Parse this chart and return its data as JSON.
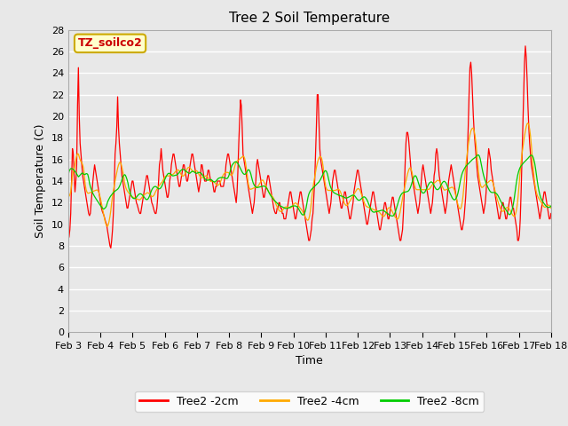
{
  "title": "Tree 2 Soil Temperature",
  "xlabel": "Time",
  "ylabel": "Soil Temperature (C)",
  "annotation": "TZ_soilco2",
  "annotation_bg": "#ffffcc",
  "annotation_border": "#ccaa00",
  "annotation_text_color": "#cc0000",
  "ylim": [
    0,
    28
  ],
  "yticks": [
    0,
    2,
    4,
    6,
    8,
    10,
    12,
    14,
    16,
    18,
    20,
    22,
    24,
    26,
    28
  ],
  "xtick_labels": [
    "Feb 3",
    "Feb 4",
    "Feb 5",
    "Feb 6",
    "Feb 7",
    "Feb 8",
    "Feb 9",
    "Feb 10",
    "Feb 11",
    "Feb 12",
    "Feb 13",
    "Feb 14",
    "Feb 15",
    "Feb 16",
    "Feb 17",
    "Feb 18"
  ],
  "line_colors": [
    "#ff0000",
    "#ffaa00",
    "#00cc00"
  ],
  "line_labels": [
    "Tree2 -2cm",
    "Tree2 -4cm",
    "Tree2 -8cm"
  ],
  "bg_color": "#e8e8e8",
  "plot_bg": "#e8e8e8",
  "grid_color": "#ffffff",
  "t2cm": [
    9.0,
    8.8,
    9.5,
    11.0,
    14.0,
    17.0,
    16.5,
    14.5,
    13.0,
    14.0,
    15.5,
    21.0,
    24.5,
    20.0,
    17.5,
    16.5,
    15.5,
    14.5,
    14.0,
    13.5,
    13.0,
    12.5,
    12.0,
    11.5,
    11.0,
    10.8,
    11.0,
    12.0,
    13.0,
    14.0,
    14.8,
    15.5,
    15.0,
    14.5,
    14.0,
    13.5,
    13.0,
    12.5,
    12.0,
    11.5,
    11.2,
    11.0,
    10.8,
    10.5,
    10.2,
    10.0,
    9.5,
    9.0,
    8.5,
    8.0,
    7.8,
    8.5,
    9.5,
    11.0,
    13.5,
    16.5,
    17.5,
    19.0,
    21.8,
    19.0,
    17.5,
    16.5,
    15.5,
    14.5,
    14.0,
    13.5,
    13.0,
    12.5,
    12.0,
    11.5,
    11.5,
    12.0,
    12.5,
    13.0,
    13.5,
    14.0,
    14.0,
    13.5,
    13.0,
    12.5,
    12.0,
    11.8,
    11.5,
    11.2,
    11.0,
    11.0,
    11.5,
    12.0,
    12.5,
    13.0,
    13.5,
    14.0,
    14.5,
    14.5,
    14.0,
    13.5,
    13.0,
    12.5,
    12.0,
    11.8,
    11.5,
    11.2,
    11.0,
    11.0,
    11.5,
    12.5,
    14.0,
    15.5,
    16.0,
    17.0,
    16.0,
    15.0,
    14.5,
    14.0,
    13.5,
    13.0,
    12.5,
    12.5,
    13.0,
    14.0,
    14.5,
    15.5,
    16.0,
    16.5,
    16.5,
    16.0,
    15.5,
    15.0,
    14.5,
    14.0,
    13.5,
    13.5,
    14.0,
    14.5,
    15.0,
    15.5,
    15.5,
    15.0,
    14.5,
    14.0,
    14.0,
    14.5,
    15.0,
    15.5,
    16.0,
    16.5,
    16.5,
    16.0,
    15.5,
    15.0,
    14.5,
    14.0,
    13.5,
    13.0,
    13.5,
    14.0,
    15.5,
    15.5,
    15.0,
    14.5,
    14.0,
    14.0,
    14.0,
    14.5,
    15.0,
    15.0,
    14.5,
    14.0,
    14.0,
    14.0,
    13.5,
    13.0,
    13.0,
    13.5,
    13.5,
    14.0,
    14.0,
    14.0,
    14.0,
    13.5,
    13.5,
    13.5,
    13.5,
    14.0,
    14.5,
    15.5,
    16.0,
    16.5,
    16.5,
    16.0,
    15.5,
    15.0,
    14.5,
    14.0,
    13.5,
    13.0,
    12.5,
    12.0,
    13.0,
    15.0,
    17.5,
    19.5,
    21.5,
    21.0,
    19.0,
    16.5,
    16.0,
    15.5,
    15.0,
    14.5,
    14.0,
    13.5,
    13.0,
    12.5,
    12.0,
    11.5,
    11.0,
    11.5,
    12.0,
    13.0,
    14.0,
    15.5,
    16.0,
    15.5,
    15.0,
    14.5,
    14.0,
    13.5,
    13.0,
    12.5,
    12.5,
    13.0,
    13.5,
    14.0,
    14.5,
    14.5,
    14.0,
    13.5,
    13.0,
    12.5,
    12.0,
    11.5,
    11.2,
    11.0,
    11.0,
    11.5,
    11.5,
    12.0,
    12.0,
    11.5,
    11.5,
    11.0,
    11.0,
    10.5,
    10.5,
    10.5,
    11.0,
    11.5,
    12.0,
    12.5,
    13.0,
    13.0,
    12.5,
    12.0,
    11.5,
    11.0,
    10.5,
    10.5,
    11.0,
    11.5,
    12.0,
    12.5,
    13.0,
    13.0,
    12.5,
    12.0,
    11.5,
    11.0,
    10.5,
    10.0,
    9.5,
    9.0,
    8.5,
    8.5,
    9.0,
    9.5,
    10.5,
    11.0,
    12.5,
    14.0,
    16.5,
    19.0,
    22.0,
    22.0,
    19.5,
    17.0,
    16.0,
    15.5,
    15.0,
    14.5,
    14.0,
    13.5,
    13.0,
    12.5,
    12.0,
    11.5,
    11.0,
    11.5,
    12.0,
    13.0,
    14.0,
    14.5,
    15.0,
    15.0,
    14.5,
    14.0,
    13.5,
    13.0,
    12.5,
    12.0,
    11.5,
    11.5,
    12.0,
    12.5,
    13.0,
    13.0,
    12.5,
    12.0,
    11.5,
    11.0,
    10.5,
    10.5,
    11.0,
    11.5,
    12.0,
    13.0,
    13.5,
    14.0,
    14.5,
    15.0,
    15.0,
    14.5,
    14.0,
    13.5,
    13.0,
    12.5,
    12.0,
    11.5,
    11.0,
    10.5,
    10.0,
    10.0,
    10.5,
    11.0,
    11.5,
    12.0,
    12.5,
    13.0,
    13.0,
    12.5,
    12.0,
    11.5,
    11.0,
    10.5,
    10.0,
    9.5,
    9.5,
    10.0,
    10.5,
    11.0,
    11.5,
    12.0,
    12.0,
    11.5,
    11.0,
    10.5,
    10.5,
    11.0,
    11.5,
    12.0,
    12.5,
    12.5,
    12.0,
    11.5,
    11.0,
    10.5,
    10.0,
    9.5,
    9.0,
    8.5,
    8.5,
    9.0,
    9.5,
    11.0,
    13.0,
    15.5,
    17.5,
    18.5,
    18.5,
    18.0,
    17.0,
    16.0,
    15.0,
    14.5,
    14.0,
    13.5,
    13.0,
    12.5,
    12.0,
    11.5,
    11.0,
    11.5,
    12.0,
    13.0,
    14.0,
    15.0,
    15.5,
    15.0,
    14.5,
    14.0,
    13.5,
    13.0,
    12.5,
    12.0,
    11.5,
    11.0,
    11.5,
    12.0,
    13.0,
    14.5,
    15.0,
    16.5,
    17.0,
    16.5,
    15.5,
    14.5,
    14.0,
    13.5,
    13.0,
    12.5,
    12.0,
    11.5,
    11.0,
    11.5,
    12.0,
    13.0,
    14.0,
    14.5,
    15.0,
    15.5,
    15.0,
    14.5,
    14.0,
    13.5,
    13.0,
    12.5,
    12.0,
    11.5,
    11.0,
    10.5,
    10.0,
    9.5,
    9.5,
    10.0,
    10.5,
    11.5,
    12.5,
    14.0,
    16.5,
    19.0,
    22.0,
    24.5,
    25.0,
    24.0,
    22.0,
    20.0,
    18.5,
    17.5,
    16.5,
    15.5,
    14.5,
    14.0,
    13.5,
    13.0,
    12.5,
    12.0,
    11.5,
    11.0,
    11.5,
    12.0,
    13.0,
    14.5,
    16.0,
    17.0,
    16.5,
    16.0,
    15.0,
    14.5,
    14.0,
    13.5,
    13.0,
    12.5,
    12.0,
    11.5,
    11.0,
    10.5,
    10.5,
    11.0,
    11.5,
    12.0,
    12.0,
    11.5,
    11.0,
    10.5,
    10.5,
    11.0,
    11.5,
    12.0,
    12.5,
    12.5,
    12.0,
    11.5,
    11.5,
    11.0,
    10.5,
    10.0,
    9.5,
    8.5,
    8.5,
    9.0,
    10.5,
    13.0,
    16.0,
    19.0,
    22.0,
    25.0,
    26.5,
    25.5,
    23.5,
    21.0,
    19.0,
    17.5,
    16.5,
    15.5,
    15.0,
    14.5,
    14.0,
    13.5,
    13.0,
    12.5,
    12.0,
    11.5,
    11.0,
    10.5,
    11.0,
    11.5,
    12.0,
    12.5,
    13.0,
    13.0,
    12.5,
    12.0,
    11.5,
    11.0,
    10.5,
    10.5,
    11.0
  ]
}
